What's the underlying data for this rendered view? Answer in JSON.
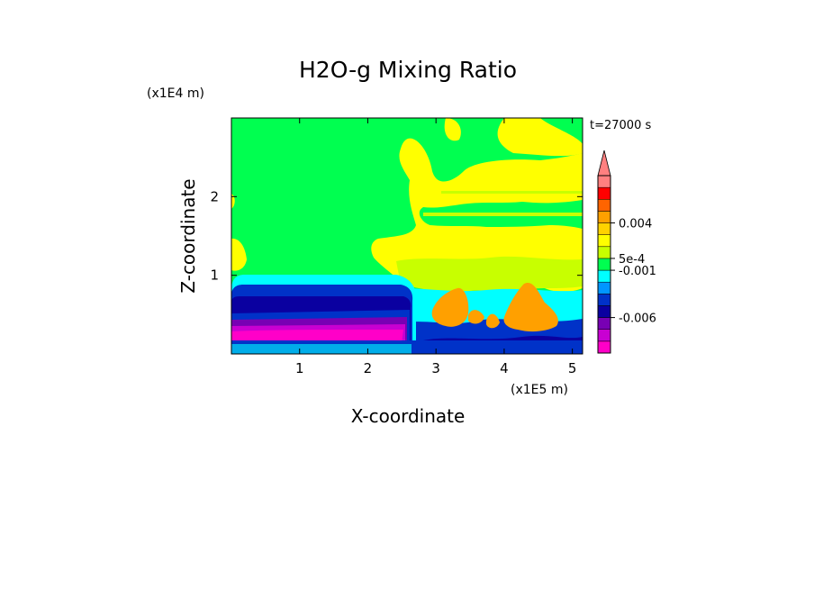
{
  "chart_data": {
    "type": "heatmap",
    "title": "H2O-g Mixing Ratio",
    "time_label": "t=27000 s",
    "xlabel": "X-coordinate",
    "ylabel": "Z-coordinate",
    "x_scale_label": "(x1E5 m)",
    "y_scale_label": "(x1E4 m)",
    "x_range": [
      0,
      5.15
    ],
    "y_range": [
      0,
      3.0
    ],
    "x_ticks": [
      "1",
      "2",
      "3",
      "4",
      "5"
    ],
    "x_tick_values": [
      1,
      2,
      3,
      4,
      5
    ],
    "y_ticks": [
      "1",
      "2"
    ],
    "y_tick_values": [
      1,
      2
    ],
    "colorbar": {
      "levels_bottom_to_top": [
        "#ff00c8",
        "#c800d2",
        "#7800b4",
        "#0a00a0",
        "#0032c8",
        "#0096ff",
        "#00ffff",
        "#00ff50",
        "#c8ff00",
        "#ffff00",
        "#ffd200",
        "#ffa000",
        "#ff6400",
        "#ff0000",
        "#ff8080"
      ],
      "labels": [
        "0.004",
        "5e-4",
        "-0.001",
        "-0.006"
      ],
      "extend_top": true
    },
    "regions": [
      {
        "name": "background",
        "color": "#00ff50"
      },
      {
        "name": "dry-layer-lavender",
        "color": "#ff00c8"
      },
      {
        "name": "dry-layer-purple",
        "color": "#c800d2"
      },
      {
        "name": "dry-layer-violet",
        "color": "#7800b4"
      },
      {
        "name": "dry-layer-navy",
        "color": "#0a00a0"
      },
      {
        "name": "dry-layer-blue",
        "color": "#0032c8"
      },
      {
        "name": "dry-layer-cyan",
        "color": "#00ffff"
      },
      {
        "name": "moist-yellow",
        "color": "#ffff00"
      },
      {
        "name": "moist-lime",
        "color": "#c8ff00"
      },
      {
        "name": "convective-orange",
        "color": "#ffa000"
      }
    ]
  }
}
